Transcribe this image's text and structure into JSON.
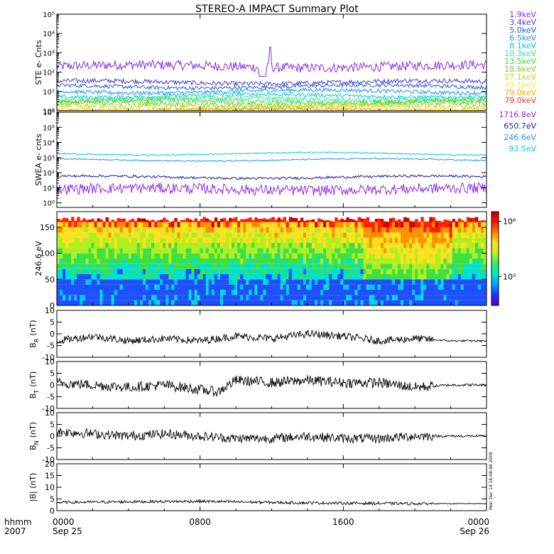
{
  "title": "STEREO-A IMPACT Summary Plot",
  "timestamp": "Mon Dec 14 16:08:48 2009",
  "x_axis": {
    "row1_label": "hhmm",
    "row2_label": "2007",
    "ticks": [
      {
        "time": "0000",
        "date": "Sep 25"
      },
      {
        "time": "0800",
        "date": ""
      },
      {
        "time": "1600",
        "date": ""
      },
      {
        "time": "0000",
        "date": "Sep 26"
      }
    ]
  },
  "colors": {
    "ste": [
      "#8a2be2",
      "#4b3bd6",
      "#1f5fe0",
      "#1e90ff",
      "#00ced1",
      "#2ee88e",
      "#3fd43f",
      "#7ccd2a",
      "#b8d82a",
      "#ffe53a",
      "#ffa500",
      "#e03b2a"
    ],
    "swea": [
      "#8a2be2",
      "#1a1aaa",
      "#1e90ff",
      "#00ced1"
    ],
    "spectrogram_scale": [
      "#00c8e8",
      "#1e50ff",
      "#00e0d0",
      "#40e040",
      "#b0ee20",
      "#ffe020",
      "#ff9000",
      "#ff2000",
      "#d00000"
    ]
  },
  "chart_data": [
    {
      "id": "ste",
      "type": "line",
      "ylabel": "STE e- Cnts",
      "yscale": "log",
      "ylim": [
        1,
        100000
      ],
      "yticks": [
        {
          "value": 1,
          "label": "10⁰"
        },
        {
          "value": 10,
          "label": "10¹"
        },
        {
          "value": 100,
          "label": "10²"
        },
        {
          "value": 1000,
          "label": "10³"
        },
        {
          "value": 10000,
          "label": "10⁴"
        },
        {
          "value": 100000,
          "label": "10⁵"
        }
      ],
      "series": [
        {
          "name": "1.9keV",
          "level": 200,
          "noise": 0.25
        },
        {
          "name": "3.4keV",
          "level": 30,
          "noise": 0.12
        },
        {
          "name": "5.0keV",
          "level": 18,
          "noise": 0.1
        },
        {
          "name": "6.5keV",
          "level": 10,
          "noise": 0.1
        },
        {
          "name": "8.1keV",
          "level": 6,
          "noise": 0.1
        },
        {
          "name": "10.3keV",
          "level": 4,
          "noise": 0.12
        },
        {
          "name": "13.5keV",
          "level": 3,
          "noise": 0.12
        },
        {
          "name": "18.6keV",
          "level": 2.2,
          "noise": 0.14
        },
        {
          "name": "27.1keV",
          "level": 1.6,
          "noise": 0.14
        },
        {
          "name": "43.1keV",
          "level": 1.3,
          "noise": 0.12
        },
        {
          "name": "79.0keV",
          "level": 1.1,
          "noise": 0.1
        }
      ],
      "legend_extra": [
        "79.0keV"
      ],
      "legend_position": "right"
    },
    {
      "id": "swea",
      "type": "line",
      "ylabel": "SWEA e- cnts",
      "yscale": "log",
      "ylim": [
        0.5,
        1000000
      ],
      "yticks": [
        {
          "value": 1,
          "label": "10⁰"
        },
        {
          "value": 10,
          "label": "10¹"
        },
        {
          "value": 100,
          "label": "10²"
        },
        {
          "value": 1000,
          "label": "10³"
        },
        {
          "value": 10000,
          "label": "10⁴"
        },
        {
          "value": 100000,
          "label": "10⁵"
        },
        {
          "value": 1000000,
          "label": "10⁶"
        }
      ],
      "series": [
        {
          "name": "1716.8eV",
          "level": 8,
          "noise": 0.35
        },
        {
          "name": "650.7eV",
          "level": 50,
          "noise": 0.08
        },
        {
          "name": "246.6eV",
          "level": 700,
          "noise": 0.04
        },
        {
          "name": "93.5eV",
          "level": 1800,
          "noise": 0.04
        }
      ],
      "legend_position": "right"
    },
    {
      "id": "spectrogram",
      "type": "heatmap",
      "ylabel": "246.6 eV",
      "ylim": [
        0,
        180
      ],
      "yticks": [
        0,
        50,
        100,
        150
      ],
      "colorbar": {
        "scale": "log",
        "range": [
          30000,
          1500000
        ],
        "tick_labels": [
          "10⁶",
          "10⁵"
        ],
        "tick_values": [
          1000000,
          100000
        ]
      }
    },
    {
      "id": "br",
      "type": "line",
      "ylabel": "B_R (nT)",
      "ylabel_main": "B",
      "ylabel_sub": "R",
      "ylabel_unit": "(nT)",
      "ylim": [
        -10,
        10
      ],
      "yticks": [
        -10,
        -5,
        0,
        5,
        10
      ],
      "series": [
        {
          "values_hours": [
            0,
            2,
            4,
            6,
            8,
            10,
            12,
            14,
            16,
            18,
            20,
            22,
            24
          ],
          "values": [
            -3,
            -1,
            -3,
            -2,
            -3,
            -1,
            -2,
            0,
            -1,
            -3,
            -2,
            -3,
            -3
          ]
        }
      ]
    },
    {
      "id": "bt",
      "type": "line",
      "ylabel": "B_T (nT)",
      "ylabel_main": "B",
      "ylabel_sub": "T",
      "ylabel_unit": "(nT)",
      "ylim": [
        -10,
        10
      ],
      "yticks": [
        -10,
        -5,
        0,
        5,
        10
      ],
      "series": [
        {
          "values_hours": [
            0,
            2,
            4,
            6,
            8,
            9,
            10,
            12,
            14,
            16,
            18,
            20,
            22,
            24
          ],
          "values": [
            1,
            0,
            -1,
            0,
            -2,
            -3,
            2,
            1,
            2,
            1,
            1,
            -1,
            0,
            0
          ]
        }
      ]
    },
    {
      "id": "bn",
      "type": "line",
      "ylabel": "B_N (nT)",
      "ylabel_main": "B",
      "ylabel_sub": "N",
      "ylabel_unit": "(nT)",
      "ylim": [
        -10,
        10
      ],
      "yticks": [
        -10,
        -5,
        0,
        5,
        10
      ],
      "series": [
        {
          "values_hours": [
            0,
            2,
            4,
            6,
            8,
            10,
            12,
            14,
            16,
            18,
            20,
            22,
            24
          ],
          "values": [
            2,
            1,
            0,
            1,
            0,
            -1,
            -1,
            0,
            -1,
            -1,
            0,
            0,
            0
          ]
        }
      ]
    },
    {
      "id": "bmag",
      "type": "line",
      "ylabel": "|B| (nT)",
      "ylim": [
        0,
        20
      ],
      "yticks": [
        0,
        5,
        10,
        15,
        20
      ],
      "series": [
        {
          "values_hours": [
            0,
            4,
            8,
            12,
            16,
            20,
            24
          ],
          "values": [
            3.5,
            3.8,
            4,
            3.5,
            3.2,
            3,
            3
          ]
        }
      ]
    }
  ]
}
